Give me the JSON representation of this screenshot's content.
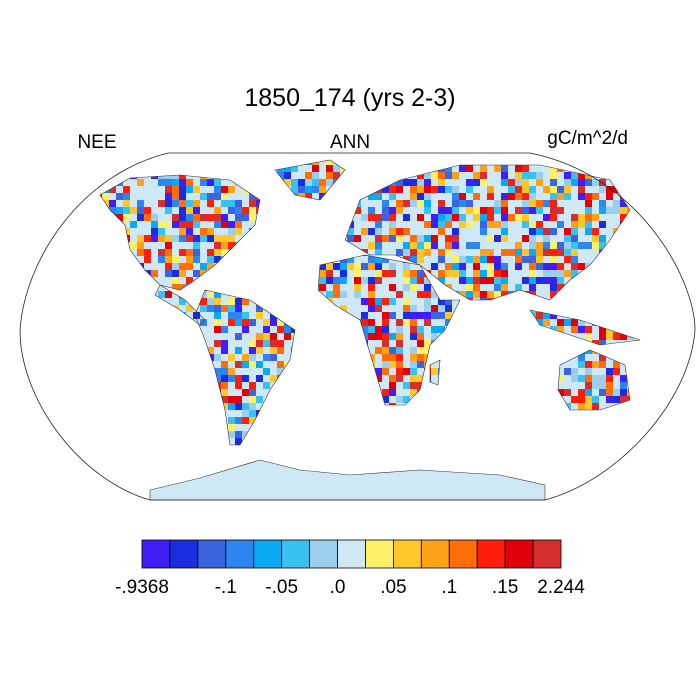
{
  "title": "1850_174 (yrs 2-3)",
  "left_label": "NEE",
  "center_label": "ANN",
  "right_label": "gC/m^2/d",
  "colorbar": {
    "colors": [
      "#3f1ff5",
      "#1a2de0",
      "#3a64e0",
      "#2d86f0",
      "#0aa8f5",
      "#38c2f2",
      "#9ccfec",
      "#cfe8f5",
      "#fff06a",
      "#ffc82a",
      "#ffa21a",
      "#ff6e0a",
      "#ff1e0a",
      "#e0000a",
      "#d42e2e"
    ],
    "labels": [
      "-.9368",
      "-.1",
      "-.05",
      ".0",
      ".05",
      ".1",
      ".15",
      "2.244"
    ]
  }
}
